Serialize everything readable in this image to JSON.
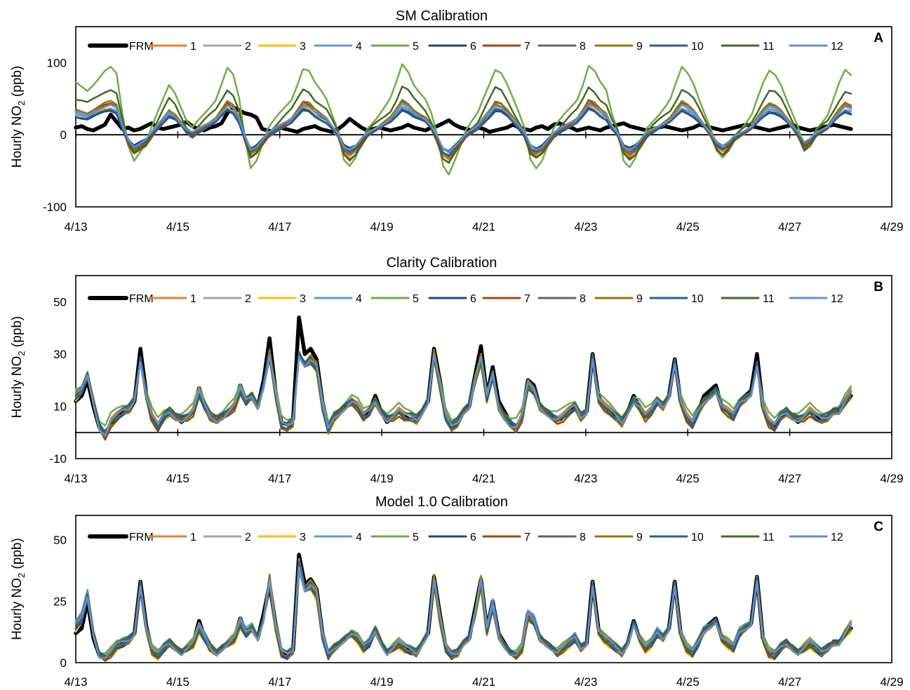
{
  "chart_data": [
    {
      "type": "line",
      "panel_label": "A",
      "title": "SM Calibration",
      "ylabel_main": "Hourly NO",
      "ylabel_sub": "2",
      "ylabel_unit": " (ppb)",
      "ylim": [
        -100,
        150
      ],
      "yticks": [
        -100,
        0,
        100
      ],
      "xlim": [
        "2020-04-13",
        "2020-04-29"
      ],
      "xticks": [
        "4/13",
        "4/15",
        "4/17",
        "4/19",
        "4/21",
        "4/23",
        "4/25",
        "4/27",
        "4/29"
      ],
      "zero_line": true,
      "legend_position": "top-left",
      "base_series": {
        "FRM": [
          10,
          12,
          8,
          6,
          10,
          14,
          28,
          18,
          8,
          10,
          6,
          8,
          12,
          16,
          10,
          8,
          10,
          12,
          14,
          18,
          12,
          8,
          6,
          10,
          12,
          16,
          30,
          38,
          34,
          30,
          28,
          24,
          8,
          6,
          4,
          10,
          8,
          6,
          4,
          8,
          10,
          12,
          8,
          6,
          4,
          8,
          14,
          22,
          16,
          10,
          6,
          8,
          10,
          8,
          6,
          8,
          10,
          14,
          10,
          8,
          6,
          10,
          12,
          16,
          20,
          14,
          10,
          8,
          6,
          10,
          8,
          4,
          6,
          8,
          10,
          14,
          10,
          8,
          6,
          10,
          12,
          8,
          14,
          16,
          12,
          10,
          6,
          8,
          10,
          8,
          6,
          10,
          12,
          14,
          16,
          12,
          10,
          8,
          6,
          8,
          10,
          12,
          10,
          8,
          6,
          8,
          10,
          14,
          12,
          10,
          8,
          6,
          8,
          10,
          12,
          14,
          12,
          10,
          8,
          6,
          8,
          10,
          12,
          14,
          10,
          8,
          6,
          8,
          10,
          12,
          14,
          12,
          10,
          8
        ],
        "sensor": [
          30,
          28,
          26,
          30,
          34,
          38,
          40,
          36,
          10,
          -10,
          -20,
          -15,
          -10,
          0,
          10,
          20,
          30,
          25,
          15,
          5,
          0,
          5,
          10,
          15,
          20,
          30,
          40,
          35,
          20,
          -5,
          -25,
          -20,
          -10,
          0,
          5,
          10,
          15,
          20,
          30,
          40,
          38,
          30,
          25,
          20,
          10,
          0,
          -20,
          -25,
          -20,
          -10,
          0,
          5,
          10,
          15,
          20,
          30,
          42,
          38,
          30,
          25,
          20,
          10,
          -5,
          -25,
          -30,
          -20,
          -10,
          0,
          5,
          10,
          20,
          30,
          40,
          38,
          30,
          20,
          10,
          0,
          -20,
          -25,
          -20,
          -10,
          0,
          5,
          10,
          15,
          20,
          30,
          42,
          38,
          30,
          25,
          10,
          0,
          -20,
          -25,
          -20,
          -10,
          0,
          5,
          10,
          15,
          20,
          30,
          40,
          36,
          30,
          20,
          10,
          0,
          -15,
          -20,
          -15,
          -5,
          0,
          5,
          10,
          20,
          30,
          38,
          36,
          30,
          20,
          10,
          0,
          -15,
          -10,
          0,
          5,
          10,
          20,
          30,
          38,
          35,
          30,
          28
        ]
      },
      "series": [
        {
          "name": "FRM",
          "color": "#000000",
          "width": 5.5,
          "scale": 1.0,
          "offset": 0
        },
        {
          "name": "1",
          "color": "#ED7D31",
          "width": 2.5,
          "scale": 1.1,
          "offset": -2
        },
        {
          "name": "2",
          "color": "#A5A5A5",
          "width": 2.5,
          "scale": 1.0,
          "offset": 1
        },
        {
          "name": "3",
          "color": "#FFC000",
          "width": 2.5,
          "scale": 0.95,
          "offset": 0
        },
        {
          "name": "4",
          "color": "#5B9BD5",
          "width": 2.5,
          "scale": 0.85,
          "offset": 2
        },
        {
          "name": "5",
          "color": "#70AD47",
          "width": 2.5,
          "scale": 2.1,
          "offset": 8
        },
        {
          "name": "6",
          "color": "#264478",
          "width": 2.5,
          "scale": 0.8,
          "offset": 1
        },
        {
          "name": "7",
          "color": "#9E480E",
          "width": 2.5,
          "scale": 1.2,
          "offset": -3
        },
        {
          "name": "8",
          "color": "#636363",
          "width": 2.5,
          "scale": 1.05,
          "offset": 0
        },
        {
          "name": "9",
          "color": "#997300",
          "width": 2.5,
          "scale": 1.1,
          "offset": 2
        },
        {
          "name": "10",
          "color": "#255E91",
          "width": 2.5,
          "scale": 0.9,
          "offset": -1
        },
        {
          "name": "11",
          "color": "#43682B",
          "width": 2.5,
          "scale": 1.5,
          "offset": 4
        },
        {
          "name": "12",
          "color": "#698ED0",
          "width": 2.5,
          "scale": 0.95,
          "offset": 3
        }
      ]
    },
    {
      "type": "line",
      "panel_label": "B",
      "title": "Clarity Calibration",
      "ylabel_main": "Hourly NO",
      "ylabel_sub": "2",
      "ylabel_unit": " (ppb)",
      "ylim": [
        -10,
        60
      ],
      "yticks": [
        -10,
        10,
        30,
        50
      ],
      "xlim": [
        "2020-04-13",
        "2020-04-29"
      ],
      "xticks": [
        "4/13",
        "4/15",
        "4/17",
        "4/19",
        "4/21",
        "4/23",
        "4/25",
        "4/27",
        "4/29"
      ],
      "zero_line": true,
      "legend_position": "top-left",
      "base_series": {
        "FRM": [
          12,
          14,
          20,
          10,
          2,
          0,
          3,
          6,
          8,
          8,
          12,
          32,
          15,
          5,
          2,
          6,
          8,
          6,
          4,
          6,
          8,
          17,
          10,
          5,
          4,
          6,
          8,
          10,
          18,
          12,
          14,
          10,
          20,
          36,
          16,
          4,
          3,
          5,
          44,
          30,
          32,
          28,
          12,
          2,
          6,
          8,
          10,
          12,
          10,
          6,
          8,
          14,
          8,
          4,
          6,
          8,
          6,
          5,
          4,
          8,
          12,
          32,
          20,
          6,
          2,
          4,
          8,
          10,
          22,
          33,
          14,
          25,
          12,
          8,
          4,
          2,
          6,
          20,
          18,
          10,
          8,
          6,
          4,
          6,
          8,
          10,
          6,
          8,
          30,
          14,
          10,
          8,
          6,
          4,
          8,
          14,
          10,
          6,
          8,
          12,
          10,
          14,
          28,
          12,
          6,
          4,
          8,
          14,
          16,
          18,
          10,
          8,
          6,
          12,
          14,
          16,
          30,
          10,
          4,
          2,
          6,
          8,
          6,
          4,
          6,
          8,
          6,
          4,
          6,
          8,
          8,
          12,
          14
        ],
        "sensor": [
          14,
          16,
          22,
          12,
          2,
          -1,
          4,
          6,
          8,
          9,
          13,
          28,
          14,
          6,
          2,
          6,
          8,
          6,
          5,
          6,
          8,
          15,
          10,
          6,
          5,
          6,
          8,
          10,
          16,
          12,
          14,
          10,
          18,
          30,
          15,
          3,
          2,
          4,
          30,
          26,
          28,
          25,
          10,
          1,
          6,
          8,
          10,
          12,
          10,
          6,
          8,
          12,
          8,
          5,
          6,
          8,
          6,
          6,
          5,
          8,
          12,
          30,
          18,
          6,
          2,
          4,
          8,
          10,
          20,
          28,
          13,
          22,
          10,
          6,
          3,
          2,
          6,
          18,
          16,
          10,
          8,
          6,
          5,
          6,
          8,
          10,
          6,
          8,
          29,
          13,
          10,
          8,
          6,
          4,
          8,
          12,
          10,
          6,
          8,
          12,
          10,
          14,
          27,
          12,
          6,
          3,
          8,
          12,
          14,
          16,
          10,
          8,
          6,
          11,
          13,
          15,
          26,
          10,
          4,
          2,
          6,
          8,
          6,
          5,
          6,
          8,
          6,
          5,
          6,
          8,
          8,
          12,
          15
        ]
      },
      "series": [
        {
          "name": "FRM",
          "color": "#000000",
          "width": 5.5,
          "scale": 1.0,
          "offset": 0
        },
        {
          "name": "1",
          "color": "#ED7D31",
          "width": 2.5,
          "scale": 1.02,
          "offset": 0.5
        },
        {
          "name": "2",
          "color": "#A5A5A5",
          "width": 2.5,
          "scale": 1.0,
          "offset": 0
        },
        {
          "name": "3",
          "color": "#FFC000",
          "width": 2.5,
          "scale": 0.98,
          "offset": -0.5
        },
        {
          "name": "4",
          "color": "#5B9BD5",
          "width": 2.5,
          "scale": 1.0,
          "offset": 0.3
        },
        {
          "name": "5",
          "color": "#70AD47",
          "width": 2.5,
          "scale": 0.9,
          "offset": 3
        },
        {
          "name": "6",
          "color": "#264478",
          "width": 2.5,
          "scale": 1.0,
          "offset": -0.3
        },
        {
          "name": "7",
          "color": "#9E480E",
          "width": 2.5,
          "scale": 1.03,
          "offset": -1
        },
        {
          "name": "8",
          "color": "#636363",
          "width": 2.5,
          "scale": 1.0,
          "offset": 0.2
        },
        {
          "name": "9",
          "color": "#997300",
          "width": 2.5,
          "scale": 1.05,
          "offset": -0.8
        },
        {
          "name": "10",
          "color": "#255E91",
          "width": 2.5,
          "scale": 0.97,
          "offset": 0.4
        },
        {
          "name": "11",
          "color": "#43682B",
          "width": 2.5,
          "scale": 0.95,
          "offset": 0.8
        },
        {
          "name": "12",
          "color": "#698ED0",
          "width": 2.5,
          "scale": 1.0,
          "offset": 0
        }
      ]
    },
    {
      "type": "line",
      "panel_label": "C",
      "title": "Model 1.0 Calibration",
      "ylabel_main": "Hourly NO",
      "ylabel_sub": "2",
      "ylabel_unit": " (ppb)",
      "ylim": [
        0,
        60
      ],
      "yticks": [
        0,
        25,
        50
      ],
      "xlim": [
        "2020-04-13",
        "2020-04-29"
      ],
      "xticks": [
        "4/13",
        "4/15",
        "4/17",
        "4/19",
        "4/21",
        "4/23",
        "4/25",
        "4/27",
        "4/29"
      ],
      "zero_line": false,
      "legend_position": "top-left",
      "base_series": {
        "FRM": [
          12,
          14,
          25,
          10,
          3,
          2,
          4,
          7,
          8,
          9,
          12,
          33,
          15,
          5,
          3,
          6,
          8,
          6,
          4,
          6,
          8,
          17,
          10,
          5,
          4,
          6,
          8,
          10,
          18,
          12,
          14,
          10,
          20,
          32,
          16,
          4,
          3,
          5,
          44,
          32,
          34,
          30,
          12,
          3,
          6,
          8,
          10,
          12,
          10,
          6,
          8,
          14,
          8,
          4,
          6,
          8,
          6,
          5,
          4,
          8,
          12,
          35,
          20,
          6,
          3,
          4,
          8,
          10,
          22,
          34,
          14,
          25,
          12,
          8,
          4,
          3,
          6,
          20,
          18,
          10,
          8,
          6,
          4,
          6,
          8,
          10,
          6,
          8,
          33,
          14,
          10,
          8,
          6,
          4,
          8,
          17,
          10,
          6,
          8,
          12,
          10,
          14,
          33,
          12,
          6,
          4,
          8,
          14,
          16,
          18,
          10,
          8,
          6,
          12,
          14,
          16,
          35,
          10,
          4,
          3,
          6,
          8,
          6,
          4,
          6,
          8,
          6,
          4,
          6,
          8,
          8,
          12,
          14
        ],
        "sensor": [
          15,
          18,
          27,
          12,
          3,
          2,
          4,
          7,
          8,
          9,
          12,
          32,
          14,
          5,
          3,
          6,
          8,
          6,
          4,
          6,
          8,
          14,
          10,
          6,
          4,
          6,
          8,
          10,
          16,
          12,
          14,
          10,
          18,
          34,
          15,
          4,
          3,
          5,
          40,
          30,
          32,
          28,
          11,
          3,
          6,
          8,
          10,
          12,
          10,
          6,
          8,
          13,
          8,
          4,
          6,
          8,
          6,
          5,
          4,
          8,
          12,
          34,
          18,
          6,
          3,
          4,
          8,
          10,
          20,
          33,
          13,
          23,
          11,
          7,
          4,
          3,
          6,
          19,
          17,
          10,
          8,
          6,
          4,
          6,
          8,
          10,
          6,
          8,
          32,
          13,
          10,
          8,
          6,
          4,
          8,
          16,
          10,
          6,
          8,
          12,
          10,
          14,
          32,
          12,
          6,
          4,
          8,
          13,
          15,
          17,
          10,
          8,
          6,
          12,
          14,
          16,
          34,
          10,
          4,
          3,
          6,
          8,
          6,
          4,
          6,
          8,
          6,
          4,
          6,
          8,
          8,
          12,
          15
        ]
      },
      "series": [
        {
          "name": "FRM",
          "color": "#000000",
          "width": 5.5,
          "scale": 1.0,
          "offset": 0
        },
        {
          "name": "1",
          "color": "#ED7D31",
          "width": 2.5,
          "scale": 1.03,
          "offset": 0.6
        },
        {
          "name": "2",
          "color": "#A5A5A5",
          "width": 2.5,
          "scale": 1.0,
          "offset": 0
        },
        {
          "name": "3",
          "color": "#FFC000",
          "width": 2.5,
          "scale": 0.97,
          "offset": -0.8
        },
        {
          "name": "4",
          "color": "#5B9BD5",
          "width": 2.5,
          "scale": 1.05,
          "offset": 0.5
        },
        {
          "name": "5",
          "color": "#70AD47",
          "width": 2.5,
          "scale": 0.93,
          "offset": 1.5
        },
        {
          "name": "6",
          "color": "#264478",
          "width": 2.5,
          "scale": 1.0,
          "offset": -0.4
        },
        {
          "name": "7",
          "color": "#9E480E",
          "width": 2.5,
          "scale": 1.02,
          "offset": -0.6
        },
        {
          "name": "8",
          "color": "#636363",
          "width": 2.5,
          "scale": 1.0,
          "offset": 0.3
        },
        {
          "name": "9",
          "color": "#997300",
          "width": 2.5,
          "scale": 1.04,
          "offset": -0.5
        },
        {
          "name": "10",
          "color": "#255E91",
          "width": 2.5,
          "scale": 0.98,
          "offset": 0.2
        },
        {
          "name": "11",
          "color": "#43682B",
          "width": 2.5,
          "scale": 0.96,
          "offset": 0.6
        },
        {
          "name": "12",
          "color": "#698ED0",
          "width": 2.5,
          "scale": 1.0,
          "offset": 0
        }
      ]
    }
  ]
}
